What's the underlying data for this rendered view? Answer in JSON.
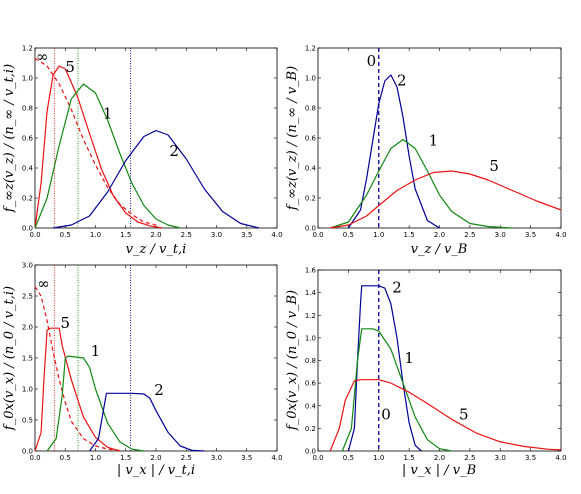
{
  "colors": {
    "red": "#ee1111",
    "green": "#118811",
    "blue": "#000099",
    "black": "#000000"
  },
  "chart_data": [
    {
      "type": "line",
      "panel": "top-left",
      "xlabel": "v_z / v_t,i",
      "ylabel": "f_∞z(v_z) / (n_∞ / v_t,i)",
      "xlim": [
        0,
        4
      ],
      "ylim": [
        0,
        1.2
      ],
      "xticks": [
        "0.0",
        "0.5",
        "1.0",
        "1.5",
        "2.0",
        "2.5",
        "3.0",
        "3.5",
        "4.0"
      ],
      "yticks": [
        "0.0",
        "0.2",
        "0.4",
        "0.6",
        "0.8",
        "1.0",
        "1.2"
      ],
      "vlines": [
        {
          "x": 0.32,
          "color": "red",
          "style": "dotted"
        },
        {
          "x": 0.71,
          "color": "green",
          "style": "dotted"
        },
        {
          "x": 1.58,
          "color": "blue",
          "style": "dotted"
        }
      ],
      "series": [
        {
          "name": "∞",
          "color": "red",
          "dash": true,
          "x": [
            0.0,
            0.2,
            0.4,
            0.6,
            0.8,
            1.0,
            1.2,
            1.4,
            1.6,
            1.8,
            2.0
          ],
          "y": [
            1.13,
            1.08,
            0.96,
            0.79,
            0.59,
            0.42,
            0.27,
            0.16,
            0.09,
            0.04,
            0.02
          ]
        },
        {
          "name": "5",
          "color": "red",
          "x": [
            0.0,
            0.1,
            0.2,
            0.3,
            0.4,
            0.5,
            0.7,
            0.9,
            1.1,
            1.3,
            1.5,
            1.7,
            1.9,
            2.1
          ],
          "y": [
            0.0,
            0.3,
            0.78,
            1.02,
            1.08,
            1.06,
            0.88,
            0.63,
            0.39,
            0.21,
            0.1,
            0.04,
            0.015,
            0.0
          ]
        },
        {
          "name": "1",
          "color": "green",
          "x": [
            0.0,
            0.2,
            0.4,
            0.6,
            0.8,
            1.0,
            1.2,
            1.4,
            1.6,
            1.8,
            2.0,
            2.2,
            2.4
          ],
          "y": [
            0.0,
            0.2,
            0.55,
            0.86,
            0.96,
            0.9,
            0.72,
            0.5,
            0.3,
            0.15,
            0.06,
            0.02,
            0.0
          ]
        },
        {
          "name": "2",
          "color": "blue",
          "x": [
            0.3,
            0.6,
            0.9,
            1.2,
            1.5,
            1.8,
            2.0,
            2.2,
            2.5,
            2.8,
            3.1,
            3.4,
            3.7
          ],
          "y": [
            0.0,
            0.02,
            0.08,
            0.24,
            0.45,
            0.61,
            0.65,
            0.62,
            0.46,
            0.26,
            0.11,
            0.03,
            0.0
          ]
        }
      ],
      "labels": [
        {
          "text": "∞",
          "x": 0.12,
          "y": 1.11
        },
        {
          "text": "5",
          "x": 0.58,
          "y": 1.04
        },
        {
          "text": "1",
          "x": 1.2,
          "y": 0.73
        },
        {
          "text": "2",
          "x": 2.3,
          "y": 0.48
        }
      ]
    },
    {
      "type": "line",
      "panel": "top-right",
      "xlabel": "v_z / v_B",
      "ylabel": "f_∞z(v_z) / (n_∞ / v_B)",
      "xlim": [
        0,
        4
      ],
      "ylim": [
        0,
        1.2
      ],
      "xticks": [
        "0.0",
        "0.5",
        "1.0",
        "1.5",
        "2.0",
        "2.5",
        "3.0",
        "3.5",
        "4.0"
      ],
      "yticks": [
        "0.0",
        "0.2",
        "0.4",
        "0.6",
        "0.8",
        "1.0",
        "1.2"
      ],
      "vlines": [
        {
          "x": 1.0,
          "color": "blue",
          "style": "dashed"
        }
      ],
      "series": [
        {
          "name": "2",
          "color": "blue",
          "x": [
            0.5,
            0.7,
            0.8,
            0.9,
            1.0,
            1.1,
            1.2,
            1.3,
            1.4,
            1.5,
            1.6,
            1.8,
            2.0
          ],
          "y": [
            0.0,
            0.12,
            0.33,
            0.58,
            0.83,
            0.98,
            1.02,
            0.94,
            0.74,
            0.48,
            0.26,
            0.05,
            0.0
          ]
        },
        {
          "name": "1",
          "color": "green",
          "x": [
            0.2,
            0.5,
            0.8,
            1.0,
            1.2,
            1.4,
            1.6,
            1.8,
            2.0,
            2.2,
            2.5,
            2.8,
            3.2
          ],
          "y": [
            0.0,
            0.04,
            0.22,
            0.38,
            0.53,
            0.59,
            0.53,
            0.38,
            0.22,
            0.11,
            0.03,
            0.01,
            0.0
          ]
        },
        {
          "name": "5",
          "color": "red",
          "x": [
            0.2,
            0.5,
            0.8,
            1.0,
            1.3,
            1.6,
            1.9,
            2.2,
            2.5,
            2.8,
            3.2,
            3.6,
            4.0
          ],
          "y": [
            0.0,
            0.02,
            0.08,
            0.15,
            0.25,
            0.32,
            0.37,
            0.38,
            0.36,
            0.32,
            0.25,
            0.18,
            0.12
          ]
        }
      ],
      "labels": [
        {
          "text": "0",
          "x": 0.88,
          "y": 1.08
        },
        {
          "text": "2",
          "x": 1.38,
          "y": 0.95
        },
        {
          "text": "1",
          "x": 1.9,
          "y": 0.55
        },
        {
          "text": "5",
          "x": 2.9,
          "y": 0.38
        }
      ]
    },
    {
      "type": "line",
      "panel": "bottom-left",
      "xlabel": "| v_x | / v_t,i",
      "ylabel": "f_0x(v_x) / (n_0 / v_t,i)",
      "xlim": [
        0,
        4
      ],
      "ylim": [
        0,
        3.0
      ],
      "xticks": [
        "0.0",
        "0.5",
        "1.0",
        "1.5",
        "2.0",
        "2.5",
        "3.0",
        "3.5",
        "4.0"
      ],
      "yticks": [
        "0.0",
        "0.5",
        "1.0",
        "1.5",
        "2.0",
        "2.5",
        "3.0"
      ],
      "vlines": [
        {
          "x": 0.32,
          "color": "red",
          "style": "dotted"
        },
        {
          "x": 0.71,
          "color": "green",
          "style": "dotted"
        },
        {
          "x": 1.58,
          "color": "blue",
          "style": "dotted"
        }
      ],
      "series": [
        {
          "name": "∞",
          "color": "red",
          "dash": true,
          "x": [
            0.0,
            0.1,
            0.2,
            0.3,
            0.4,
            0.5,
            0.6,
            0.8,
            1.0,
            1.2,
            1.4
          ],
          "y": [
            2.65,
            2.5,
            2.1,
            1.6,
            1.15,
            0.78,
            0.48,
            0.2,
            0.08,
            0.03,
            0.01
          ]
        },
        {
          "name": "5",
          "color": "red",
          "x": [
            0.0,
            0.1,
            0.15,
            0.2,
            0.25,
            0.4,
            0.45,
            0.6,
            0.8,
            1.0,
            1.2,
            1.4
          ],
          "y": [
            0.0,
            0.3,
            1.2,
            1.95,
            1.98,
            1.98,
            1.7,
            1.15,
            0.55,
            0.22,
            0.06,
            0.0
          ]
        },
        {
          "name": "1",
          "color": "green",
          "x": [
            0.2,
            0.35,
            0.45,
            0.5,
            0.55,
            0.8,
            0.9,
            1.0,
            1.2,
            1.4,
            1.6,
            1.8
          ],
          "y": [
            0.0,
            0.2,
            0.9,
            1.5,
            1.53,
            1.5,
            1.35,
            1.0,
            0.45,
            0.15,
            0.03,
            0.0
          ]
        },
        {
          "name": "2",
          "color": "blue",
          "x": [
            0.9,
            1.05,
            1.12,
            1.18,
            1.6,
            1.8,
            1.9,
            2.0,
            2.2,
            2.4,
            2.6,
            2.8
          ],
          "y": [
            0.0,
            0.2,
            0.6,
            0.93,
            0.93,
            0.92,
            0.85,
            0.65,
            0.3,
            0.08,
            0.01,
            0.0
          ]
        }
      ],
      "labels": [
        {
          "text": "∞",
          "x": 0.14,
          "y": 2.62
        },
        {
          "text": "5",
          "x": 0.5,
          "y": 1.98
        },
        {
          "text": "1",
          "x": 1.0,
          "y": 1.53
        },
        {
          "text": "2",
          "x": 2.05,
          "y": 0.9
        }
      ]
    },
    {
      "type": "line",
      "panel": "bottom-right",
      "xlabel": "| v_x | / v_B",
      "ylabel": "f_0x(v_x) / (n_0 / v_B)",
      "xlim": [
        0,
        4
      ],
      "ylim": [
        0,
        1.6
      ],
      "xticks": [
        "0.0",
        "0.5",
        "1.0",
        "1.5",
        "2.0",
        "2.5",
        "3.0",
        "3.5",
        "4.0"
      ],
      "yticks": [
        "0.0",
        "0.2",
        "0.4",
        "0.6",
        "0.8",
        "1.0",
        "1.2",
        "1.4",
        "1.6"
      ],
      "vlines": [
        {
          "x": 1.0,
          "color": "blue",
          "style": "dashed"
        }
      ],
      "series": [
        {
          "name": "2",
          "color": "blue",
          "x": [
            0.5,
            0.6,
            0.65,
            0.7,
            0.72,
            1.0,
            1.1,
            1.2,
            1.3,
            1.4,
            1.5,
            1.6,
            1.7
          ],
          "y": [
            0.0,
            0.2,
            0.8,
            1.3,
            1.46,
            1.46,
            1.44,
            1.3,
            1.0,
            0.6,
            0.25,
            0.05,
            0.0
          ]
        },
        {
          "name": "1",
          "color": "green",
          "x": [
            0.4,
            0.55,
            0.65,
            0.72,
            0.9,
            1.0,
            1.2,
            1.4,
            1.6,
            1.8,
            2.0,
            2.2
          ],
          "y": [
            0.0,
            0.2,
            0.8,
            1.08,
            1.08,
            1.06,
            0.9,
            0.6,
            0.3,
            0.1,
            0.02,
            0.0
          ]
        },
        {
          "name": "5",
          "color": "red",
          "x": [
            0.2,
            0.35,
            0.45,
            0.6,
            0.7,
            1.0,
            1.2,
            1.5,
            1.8,
            2.2,
            2.6,
            3.0,
            3.4,
            3.8,
            4.0
          ],
          "y": [
            0.0,
            0.2,
            0.45,
            0.62,
            0.63,
            0.63,
            0.6,
            0.52,
            0.42,
            0.28,
            0.16,
            0.08,
            0.04,
            0.015,
            0.01
          ]
        }
      ],
      "labels": [
        {
          "text": "2",
          "x": 1.3,
          "y": 1.4
        },
        {
          "text": "1",
          "x": 1.5,
          "y": 0.78
        },
        {
          "text": "0",
          "x": 1.12,
          "y": 0.28
        },
        {
          "text": "5",
          "x": 2.4,
          "y": 0.28
        }
      ]
    }
  ]
}
